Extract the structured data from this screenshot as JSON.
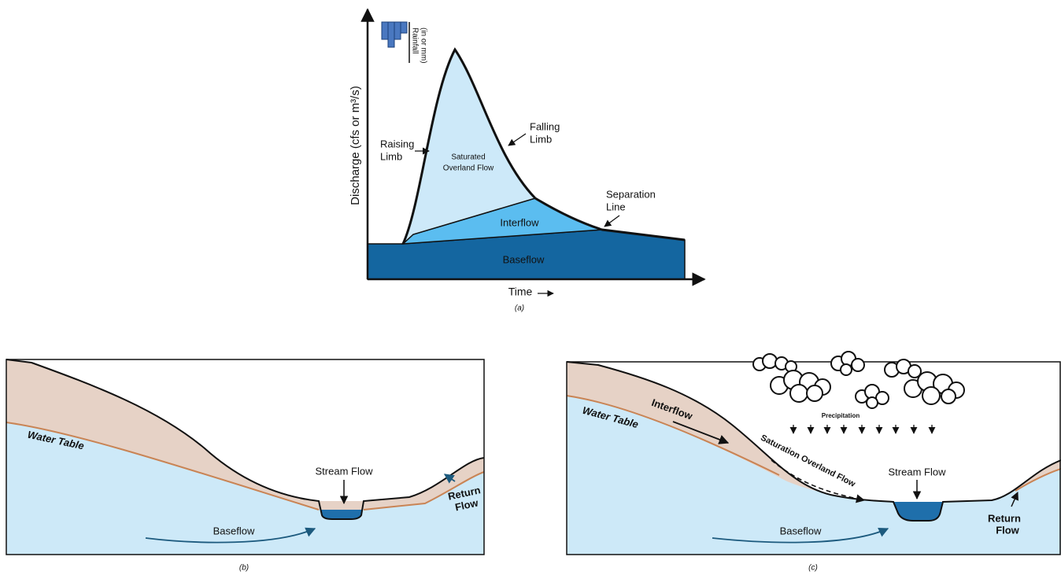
{
  "panel_a": {
    "rainfall_label": [
      "Rainfall",
      "(in or mm)"
    ],
    "y_axis_label": "Discharge (cfs or m³/s)",
    "x_axis_label": "Time",
    "raising_limb": [
      "Raising",
      "Limb"
    ],
    "falling_limb": [
      "Falling",
      "Limb"
    ],
    "saturated_overland_flow": [
      "Saturated",
      "Overland Flow"
    ],
    "interflow": "Interflow",
    "baseflow": "Baseflow",
    "separation_line": [
      "Separation",
      "Line"
    ],
    "caption": "(a)"
  },
  "panel_b": {
    "water_table": "Water Table",
    "stream_flow": "Stream Flow",
    "baseflow": "Baseflow",
    "return_flow": [
      "Return",
      "Flow"
    ],
    "caption": "(b)"
  },
  "panel_c": {
    "water_table": "Water Table",
    "interflow": "Interflow",
    "precipitation": "Precipitation",
    "saturation_overland_flow": "Saturation Overland Flow",
    "stream_flow": "Stream Flow",
    "baseflow": "Baseflow",
    "return_flow": [
      "Return",
      "Flow"
    ],
    "caption": "(c)"
  }
}
